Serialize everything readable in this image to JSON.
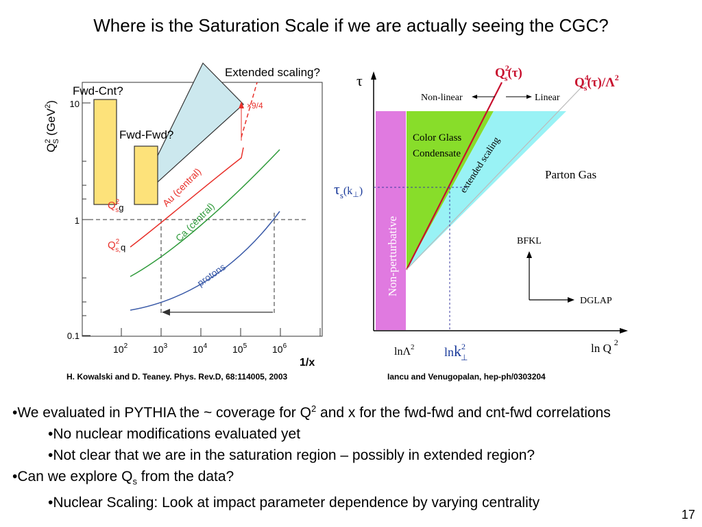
{
  "slide": {
    "title": "Where is the Saturation Scale if we are actually seeing the CGC?",
    "number": "17"
  },
  "left_plot": {
    "ylabel": "Q",
    "ylabel_sub": "S",
    "ylabel_sup": "2",
    "ylabel_unit": " (GeV",
    "ylabel_unit_sup": "2",
    "ylabel_close": ")",
    "xlabel": "1/x",
    "y_ticks": [
      "10",
      "1",
      "0.1"
    ],
    "x_ticks": [
      {
        "base": "10",
        "exp": "2"
      },
      {
        "base": "10",
        "exp": "3"
      },
      {
        "base": "10",
        "exp": "4"
      },
      {
        "base": "10",
        "exp": "5"
      },
      {
        "base": "10",
        "exp": "6"
      }
    ],
    "curves": [
      {
        "name": "Au (central)",
        "color": "#e8302a"
      },
      {
        "name": "Ca (central)",
        "color": "#2e9a3a"
      },
      {
        "name": "protons",
        "color": "#3a5aa8"
      }
    ],
    "annotation_factor": "×9/4",
    "qsg_base": "Q",
    "qsg_sup": "2",
    "qsg_sub": "s",
    "qsg_tail": "g",
    "qsq_base": "Q",
    "qsq_sup": "2",
    "qsq_sub": "s,",
    "qsq_tail": "q",
    "box_fwd_cnt": "Fwd-Cnt?",
    "box_fwd_fwd": "Fwd-Fwd?",
    "extended_label": "Extended scaling?"
  },
  "right_diagram": {
    "tau": "τ",
    "qs2": "Q",
    "qs2_sup": "2",
    "qs2_sub": "s",
    "qs2_arg": "(τ)",
    "qs4": "Q",
    "qs4_sup": "4",
    "qs4_sub": "s",
    "qs4_arg": "(τ)/Λ",
    "qs4_arg_sup": "2",
    "nonlinear": "Non-linear",
    "linear": "Linear",
    "cgc_line1": "Color Glass",
    "cgc_line2": "Condensate",
    "extended": "extended scaling",
    "parton_gas": "Parton Gas",
    "taus": "τ",
    "taus_sub": "s",
    "taus_arg": "(k",
    "taus_arg_sub": "⊥",
    "taus_close": ")",
    "nonpert": "Non-perturbative",
    "bfkl": "BFKL",
    "dglap": "DGLAP",
    "x1": "lnΛ",
    "x1_sup": "2",
    "x2": "ln",
    "x2_k": "k",
    "x2_sup": "2",
    "x2_sub": "⊥",
    "x3": "ln Q",
    "x3_sup": "2"
  },
  "citations": {
    "left": "H. Kowalski and D. Teaney. Phys. Rev.D, 68:114005, 2003",
    "right": "Iancu and Venugopalan, hep-ph/0303204"
  },
  "bullets": {
    "b1_pre": "•We evaluated in PYTHIA the ~ coverage for Q",
    "b1_sup": "2",
    "b1_post": " and x for the fwd-fwd and cnt-fwd correlations",
    "b2": "•No nuclear modifications evaluated yet",
    "b3": "•Not clear that we are in the saturation region – possibly in extended region?",
    "b4_pre": "•Can we explore Q",
    "b4_sub": "s",
    "b4_post": " from the data?",
    "b5": "•Nuclear Scaling: Look at impact parameter dependence by varying centrality"
  },
  "colors": {
    "au": "#e8302a",
    "ca": "#2e9a3a",
    "protons": "#3a5aa8",
    "nonpert_fill": "#e07ae0",
    "cgc_fill": "#88dd2a",
    "parton_fill": "#99f2f5",
    "box_fill": "#fde27a",
    "wedge_fill": "#cce8ee"
  }
}
